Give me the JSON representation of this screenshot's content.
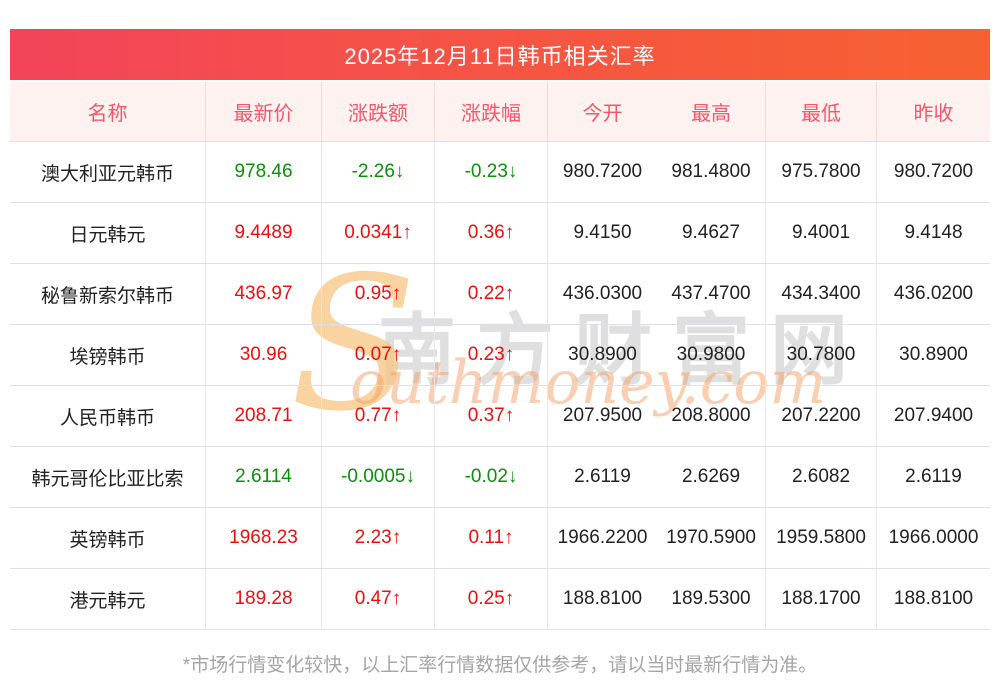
{
  "title": "2025年12月11日韩币相关汇率",
  "colors": {
    "bar_gradient_left": "#f4435a",
    "bar_gradient_right": "#f76130",
    "header_bg": "#fdf2f0",
    "header_text": "#f55668",
    "up_red": "#f20d0d",
    "down_green": "#0a900a"
  },
  "watermark": {
    "site_cn": "南方财富网",
    "initial": "S",
    "rest": "outhmoney.com"
  },
  "footer": {
    "note": "*市场行情变化较快，以上汇率行情数据仅供参考，请以当时最新行情为准。"
  },
  "chart_data": {
    "type": "table",
    "title": "2025年12月11日韩币相关汇率",
    "columns": [
      "名称",
      "最新价",
      "涨跌额",
      "涨跌幅",
      "今开",
      "最高",
      "最低",
      "昨收"
    ],
    "rows": [
      {
        "trend": "down",
        "cells": [
          "澳大利亚元韩币",
          "978.46",
          "-2.26↓",
          "-0.23↓",
          "980.7200",
          "981.4800",
          "975.7800",
          "980.7200"
        ]
      },
      {
        "trend": "up",
        "cells": [
          "日元韩元",
          "9.4489",
          "0.0341↑",
          "0.36↑",
          "9.4150",
          "9.4627",
          "9.4001",
          "9.4148"
        ]
      },
      {
        "trend": "up",
        "cells": [
          "秘鲁新索尔韩币",
          "436.97",
          "0.95↑",
          "0.22↑",
          "436.0300",
          "437.4700",
          "434.3400",
          "436.0200"
        ]
      },
      {
        "trend": "up",
        "cells": [
          "埃镑韩币",
          "30.96",
          "0.07↑",
          "0.23↑",
          "30.8900",
          "30.9800",
          "30.7800",
          "30.8900"
        ]
      },
      {
        "trend": "up",
        "cells": [
          "人民币韩币",
          "208.71",
          "0.77↑",
          "0.37↑",
          "207.9500",
          "208.8000",
          "207.2200",
          "207.9400"
        ]
      },
      {
        "trend": "down",
        "cells": [
          "韩元哥伦比亚比索",
          "2.6114",
          "-0.0005↓",
          "-0.02↓",
          "2.6119",
          "2.6269",
          "2.6082",
          "2.6119"
        ]
      },
      {
        "trend": "up",
        "cells": [
          "英镑韩币",
          "1968.23",
          "2.23↑",
          "0.11↑",
          "1966.2200",
          "1970.5900",
          "1959.5800",
          "1966.0000"
        ]
      },
      {
        "trend": "up",
        "cells": [
          "港元韩元",
          "189.28",
          "0.47↑",
          "0.25↑",
          "188.8100",
          "189.5300",
          "188.1700",
          "188.8100"
        ]
      }
    ]
  }
}
